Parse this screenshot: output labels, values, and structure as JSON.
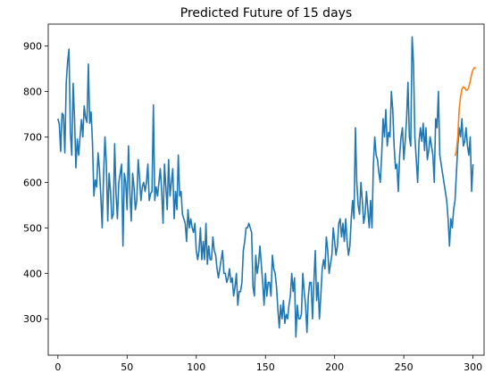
{
  "chart_data": {
    "type": "line",
    "title": "Predicted Future of 15 days",
    "xlabel": "",
    "ylabel": "",
    "xlim": [
      -7,
      308
    ],
    "ylim": [
      220,
      948
    ],
    "xticks": [
      0,
      50,
      100,
      150,
      200,
      250,
      300
    ],
    "yticks": [
      300,
      400,
      500,
      600,
      700,
      800,
      900
    ],
    "grid": false,
    "legend": "none",
    "series": [
      {
        "color": "#1f77b4",
        "x_start": 0,
        "values": [
          740,
          728,
          668,
          752,
          748,
          665,
          818,
          865,
          893,
          710,
          660,
          818,
          742,
          632,
          695,
          660,
          700,
          738,
          700,
          768,
          742,
          732,
          860,
          730,
          755,
          685,
          570,
          605,
          590,
          665,
          630,
          570,
          500,
          615,
          700,
          640,
          515,
          620,
          580,
          520,
          530,
          685,
          575,
          520,
          600,
          620,
          640,
          460,
          620,
          600,
          540,
          680,
          580,
          515,
          620,
          590,
          540,
          560,
          650,
          610,
          560,
          590,
          600,
          580,
          600,
          640,
          560,
          575,
          580,
          770,
          560,
          590,
          570,
          600,
          630,
          580,
          510,
          640,
          590,
          540,
          650,
          570,
          600,
          630,
          520,
          580,
          540,
          660,
          570,
          580,
          530,
          520,
          510,
          470,
          540,
          500,
          520,
          500,
          490,
          510,
          450,
          430,
          450,
          500,
          430,
          470,
          430,
          510,
          420,
          460,
          430,
          430,
          480,
          450,
          440,
          410,
          390,
          410,
          430,
          450,
          400,
          400,
          380,
          390,
          410,
          380,
          390,
          350,
          370,
          400,
          330,
          360,
          360,
          380,
          450,
          470,
          500,
          500,
          510,
          500,
          490,
          370,
          350,
          440,
          400,
          420,
          460,
          420,
          380,
          330,
          400,
          350,
          380,
          380,
          350,
          440,
          410,
          400,
          370,
          320,
          280,
          330,
          300,
          340,
          290,
          310,
          300,
          330,
          350,
          400,
          360,
          390,
          260,
          330,
          300,
          300,
          310,
          400,
          360,
          330,
          270,
          350,
          380,
          380,
          300,
          380,
          450,
          340,
          380,
          300,
          350,
          410,
          430,
          410,
          480,
          450,
          400,
          420,
          440,
          500,
          470,
          440,
          460,
          510,
          520,
          480,
          510,
          470,
          520,
          470,
          440,
          460,
          520,
          560,
          520,
          720,
          600,
          550,
          530,
          600,
          560,
          510,
          530,
          580,
          540,
          500,
          560,
          500,
          640,
          700,
          660,
          650,
          620,
          600,
          660,
          740,
          700,
          760,
          680,
          710,
          700,
          800,
          760,
          680,
          630,
          640,
          580,
          660,
          700,
          720,
          650,
          690,
          740,
          820,
          700,
          680,
          920,
          860,
          700,
          650,
          600,
          690,
          720,
          690,
          730,
          670,
          720,
          650,
          670,
          700,
          680,
          660,
          600,
          740,
          720,
          800,
          660,
          640,
          620,
          600,
          580,
          560,
          520,
          460,
          520,
          500,
          540,
          560,
          620,
          680,
          720,
          700,
          740,
          680,
          690,
          720,
          680,
          660,
          700,
          580,
          640
        ]
      },
      {
        "color": "#ff7f0e",
        "x": [
          287,
          288,
          289,
          290,
          291,
          292,
          293,
          294,
          295,
          296,
          297,
          298,
          299,
          300,
          301,
          302
        ],
        "values": [
          658,
          668,
          700,
          760,
          788,
          805,
          810,
          808,
          803,
          803,
          810,
          822,
          838,
          848,
          852,
          852
        ]
      }
    ]
  }
}
